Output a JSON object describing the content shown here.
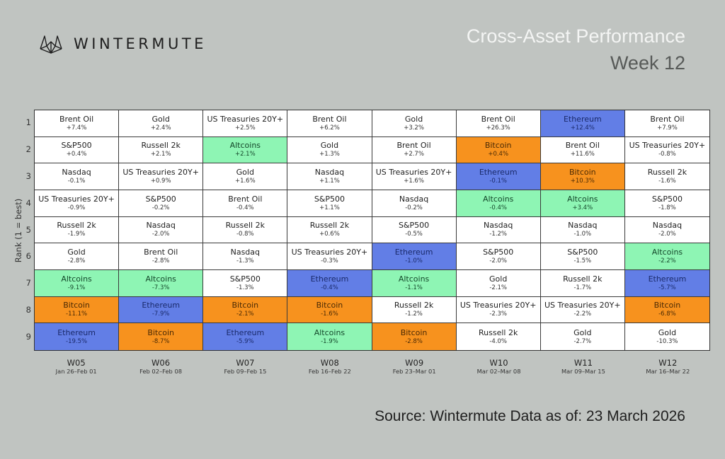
{
  "header": {
    "brand": "WINTERMUTE",
    "title": "Cross-Asset Performance",
    "subtitle": "Week 12"
  },
  "footer": {
    "source": "Source: Wintermute  Data as of: 23 March 2026"
  },
  "colors": {
    "Bitcoin": "#f7921e",
    "Ethereum": "#627ee6",
    "Altcoins": "#8ef5b4",
    "other": "#ffffff",
    "background": "#c0c4c1"
  },
  "chart_data": {
    "type": "table",
    "title": "Cross-Asset Performance Week 12",
    "ylabel": "Rank (1 = best)",
    "xlabel": "",
    "rank_labels": [
      "1",
      "2",
      "3",
      "4",
      "5",
      "6",
      "7",
      "8",
      "9"
    ],
    "columns": [
      {
        "week": "W05",
        "dates": "Jan 26–Feb 01",
        "ranks": [
          {
            "asset": "Brent Oil",
            "pct": "+7.4%"
          },
          {
            "asset": "S&P500",
            "pct": "+0.4%"
          },
          {
            "asset": "Nasdaq",
            "pct": "-0.1%"
          },
          {
            "asset": "US Treasuries 20Y+",
            "pct": "-0.9%"
          },
          {
            "asset": "Russell 2k",
            "pct": "-1.9%"
          },
          {
            "asset": "Gold",
            "pct": "-2.8%"
          },
          {
            "asset": "Altcoins",
            "pct": "-9.1%"
          },
          {
            "asset": "Bitcoin",
            "pct": "-11.1%"
          },
          {
            "asset": "Ethereum",
            "pct": "-19.5%"
          }
        ]
      },
      {
        "week": "W06",
        "dates": "Feb 02–Feb 08",
        "ranks": [
          {
            "asset": "Gold",
            "pct": "+2.4%"
          },
          {
            "asset": "Russell 2k",
            "pct": "+2.1%"
          },
          {
            "asset": "US Treasuries 20Y+",
            "pct": "+0.9%"
          },
          {
            "asset": "S&P500",
            "pct": "-0.2%"
          },
          {
            "asset": "Nasdaq",
            "pct": "-2.0%"
          },
          {
            "asset": "Brent Oil",
            "pct": "-2.8%"
          },
          {
            "asset": "Altcoins",
            "pct": "-7.3%"
          },
          {
            "asset": "Ethereum",
            "pct": "-7.9%"
          },
          {
            "asset": "Bitcoin",
            "pct": "-8.7%"
          }
        ]
      },
      {
        "week": "W07",
        "dates": "Feb 09–Feb 15",
        "ranks": [
          {
            "asset": "US Treasuries 20Y+",
            "pct": "+2.5%"
          },
          {
            "asset": "Altcoins",
            "pct": "+2.1%"
          },
          {
            "asset": "Gold",
            "pct": "+1.6%"
          },
          {
            "asset": "Brent Oil",
            "pct": "-0.4%"
          },
          {
            "asset": "Russell 2k",
            "pct": "-0.8%"
          },
          {
            "asset": "Nasdaq",
            "pct": "-1.3%"
          },
          {
            "asset": "S&P500",
            "pct": "-1.3%"
          },
          {
            "asset": "Bitcoin",
            "pct": "-2.1%"
          },
          {
            "asset": "Ethereum",
            "pct": "-5.9%"
          }
        ]
      },
      {
        "week": "W08",
        "dates": "Feb 16–Feb 22",
        "ranks": [
          {
            "asset": "Brent Oil",
            "pct": "+6.2%"
          },
          {
            "asset": "Gold",
            "pct": "+1.3%"
          },
          {
            "asset": "Nasdaq",
            "pct": "+1.1%"
          },
          {
            "asset": "S&P500",
            "pct": "+1.1%"
          },
          {
            "asset": "Russell 2k",
            "pct": "+0.6%"
          },
          {
            "asset": "US Treasuries 20Y+",
            "pct": "-0.3%"
          },
          {
            "asset": "Ethereum",
            "pct": "-0.4%"
          },
          {
            "asset": "Bitcoin",
            "pct": "-1.6%"
          },
          {
            "asset": "Altcoins",
            "pct": "-1.9%"
          }
        ]
      },
      {
        "week": "W09",
        "dates": "Feb 23–Mar 01",
        "ranks": [
          {
            "asset": "Gold",
            "pct": "+3.2%"
          },
          {
            "asset": "Brent Oil",
            "pct": "+2.7%"
          },
          {
            "asset": "US Treasuries 20Y+",
            "pct": "+1.6%"
          },
          {
            "asset": "Nasdaq",
            "pct": "-0.2%"
          },
          {
            "asset": "S&P500",
            "pct": "-0.5%"
          },
          {
            "asset": "Ethereum",
            "pct": "-1.0%"
          },
          {
            "asset": "Altcoins",
            "pct": "-1.1%"
          },
          {
            "asset": "Russell 2k",
            "pct": "-1.2%"
          },
          {
            "asset": "Bitcoin",
            "pct": "-2.8%"
          }
        ]
      },
      {
        "week": "W10",
        "dates": "Mar 02–Mar 08",
        "ranks": [
          {
            "asset": "Brent Oil",
            "pct": "+26.3%"
          },
          {
            "asset": "Bitcoin",
            "pct": "+0.4%"
          },
          {
            "asset": "Ethereum",
            "pct": "-0.1%"
          },
          {
            "asset": "Altcoins",
            "pct": "-0.4%"
          },
          {
            "asset": "Nasdaq",
            "pct": "-1.2%"
          },
          {
            "asset": "S&P500",
            "pct": "-2.0%"
          },
          {
            "asset": "Gold",
            "pct": "-2.1%"
          },
          {
            "asset": "US Treasuries 20Y+",
            "pct": "-2.3%"
          },
          {
            "asset": "Russell 2k",
            "pct": "-4.0%"
          }
        ]
      },
      {
        "week": "W11",
        "dates": "Mar 09–Mar 15",
        "ranks": [
          {
            "asset": "Ethereum",
            "pct": "+12.4%"
          },
          {
            "asset": "Brent Oil",
            "pct": "+11.6%"
          },
          {
            "asset": "Bitcoin",
            "pct": "+10.3%"
          },
          {
            "asset": "Altcoins",
            "pct": "+3.4%"
          },
          {
            "asset": "Nasdaq",
            "pct": "-1.0%"
          },
          {
            "asset": "S&P500",
            "pct": "-1.5%"
          },
          {
            "asset": "Russell 2k",
            "pct": "-1.7%"
          },
          {
            "asset": "US Treasuries 20Y+",
            "pct": "-2.2%"
          },
          {
            "asset": "Gold",
            "pct": "-2.7%"
          }
        ]
      },
      {
        "week": "W12",
        "dates": "Mar 16–Mar 22",
        "ranks": [
          {
            "asset": "Brent Oil",
            "pct": "+7.9%"
          },
          {
            "asset": "US Treasuries 20Y+",
            "pct": "-0.8%"
          },
          {
            "asset": "Russell 2k",
            "pct": "-1.6%"
          },
          {
            "asset": "S&P500",
            "pct": "-1.8%"
          },
          {
            "asset": "Nasdaq",
            "pct": "-2.0%"
          },
          {
            "asset": "Altcoins",
            "pct": "-2.2%"
          },
          {
            "asset": "Ethereum",
            "pct": "-5.7%"
          },
          {
            "asset": "Bitcoin",
            "pct": "-6.8%"
          },
          {
            "asset": "Gold",
            "pct": "-10.3%"
          }
        ]
      }
    ]
  }
}
